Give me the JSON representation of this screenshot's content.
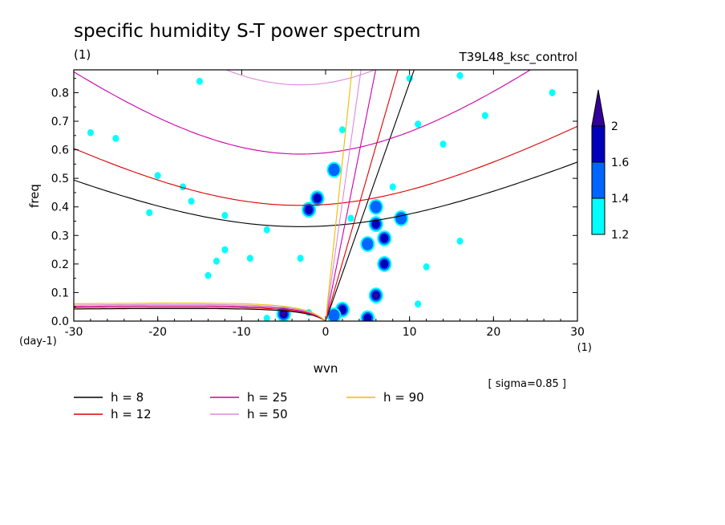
{
  "chart_data": {
    "type": "contour",
    "title": "specific humidity S-T power spectrum",
    "subtitle_left": "(1)",
    "subtitle_right": "T39L48_ksc_control",
    "xlabel": "wvn",
    "ylabel": "freq",
    "x_unit": "(1)",
    "y_unit": "(day-1)",
    "annotation": "[ sigma=0.85 ]",
    "xlim": [
      -30,
      30
    ],
    "ylim": [
      0,
      0.88
    ],
    "x_ticks": [
      -30,
      -20,
      -10,
      0,
      10,
      20,
      30
    ],
    "y_ticks": [
      0.0,
      0.1,
      0.2,
      0.3,
      0.4,
      0.5,
      0.6,
      0.7,
      0.8
    ],
    "x_tick_labels": [
      "-30",
      "-20",
      "-10",
      "0",
      "10",
      "20",
      "30"
    ],
    "y_tick_labels": [
      "0.0",
      "0.1",
      "0.2",
      "0.3",
      "0.4",
      "0.5",
      "0.6",
      "0.7",
      "0.8"
    ],
    "colorbar": {
      "levels": [
        1.2,
        1.4,
        1.6,
        2
      ],
      "labels": [
        "1.2",
        "1.4",
        "1.6",
        "2"
      ],
      "colors": [
        "#00ffff",
        "#0066ff",
        "#0000bb",
        "#330099"
      ]
    },
    "dispersion_curves": [
      {
        "label": "h =  8",
        "h": 8,
        "color": "#000000"
      },
      {
        "label": "h = 12",
        "h": 12,
        "color": "#dd0000"
      },
      {
        "label": "h = 25",
        "h": 25,
        "color": "#cc00aa"
      },
      {
        "label": "h = 50",
        "h": 50,
        "color": "#dd88dd"
      },
      {
        "label": "h = 90",
        "h": 90,
        "color": "#eebb00"
      }
    ],
    "blobs": [
      {
        "x": -5,
        "y": 0.025,
        "level": 4
      },
      {
        "x": 6,
        "y": 0.09,
        "level": 4
      },
      {
        "x": 7,
        "y": 0.2,
        "level": 3
      },
      {
        "x": 7,
        "y": 0.29,
        "level": 3
      },
      {
        "x": 6,
        "y": 0.34,
        "level": 3
      },
      {
        "x": 5,
        "y": 0.27,
        "level": 2
      },
      {
        "x": 9,
        "y": 0.36,
        "level": 2
      },
      {
        "x": 2,
        "y": 0.04,
        "level": 3
      },
      {
        "x": 1,
        "y": 0.02,
        "level": 2
      },
      {
        "x": 5,
        "y": 0.01,
        "level": 3
      },
      {
        "x": -2,
        "y": 0.39,
        "level": 3
      },
      {
        "x": -1,
        "y": 0.43,
        "level": 3
      },
      {
        "x": 1,
        "y": 0.53,
        "level": 2
      },
      {
        "x": 6,
        "y": 0.4,
        "level": 2
      },
      {
        "x": 8,
        "y": 0.47,
        "level": 1
      },
      {
        "x": 11,
        "y": 0.69,
        "level": 1
      },
      {
        "x": 14,
        "y": 0.62,
        "level": 1
      },
      {
        "x": 19,
        "y": 0.72,
        "level": 1
      },
      {
        "x": -25,
        "y": 0.64,
        "level": 1
      },
      {
        "x": -20,
        "y": 0.51,
        "level": 1
      },
      {
        "x": -16,
        "y": 0.42,
        "level": 1
      },
      {
        "x": -17,
        "y": 0.47,
        "level": 1
      },
      {
        "x": -12,
        "y": 0.37,
        "level": 1
      },
      {
        "x": -13,
        "y": 0.21,
        "level": 1
      },
      {
        "x": -14,
        "y": 0.16,
        "level": 1
      },
      {
        "x": -12,
        "y": 0.25,
        "level": 1
      },
      {
        "x": -9,
        "y": 0.22,
        "level": 1
      },
      {
        "x": -7,
        "y": 0.32,
        "level": 1
      },
      {
        "x": -3,
        "y": 0.22,
        "level": 1
      },
      {
        "x": 3,
        "y": 0.36,
        "level": 1
      },
      {
        "x": 12,
        "y": 0.19,
        "level": 1
      },
      {
        "x": 16,
        "y": 0.28,
        "level": 1
      },
      {
        "x": 11,
        "y": 0.06,
        "level": 1
      },
      {
        "x": -28,
        "y": 0.66,
        "level": 1
      },
      {
        "x": -2,
        "y": 0.03,
        "level": 1
      },
      {
        "x": -7,
        "y": 0.01,
        "level": 1
      },
      {
        "x": 2,
        "y": 0.67,
        "level": 1
      },
      {
        "x": -15,
        "y": 0.84,
        "level": 1
      },
      {
        "x": 10,
        "y": 0.85,
        "level": 1
      },
      {
        "x": 16,
        "y": 0.86,
        "level": 1
      },
      {
        "x": 27,
        "y": 0.8,
        "level": 1
      },
      {
        "x": -21,
        "y": 0.38,
        "level": 1
      }
    ]
  }
}
